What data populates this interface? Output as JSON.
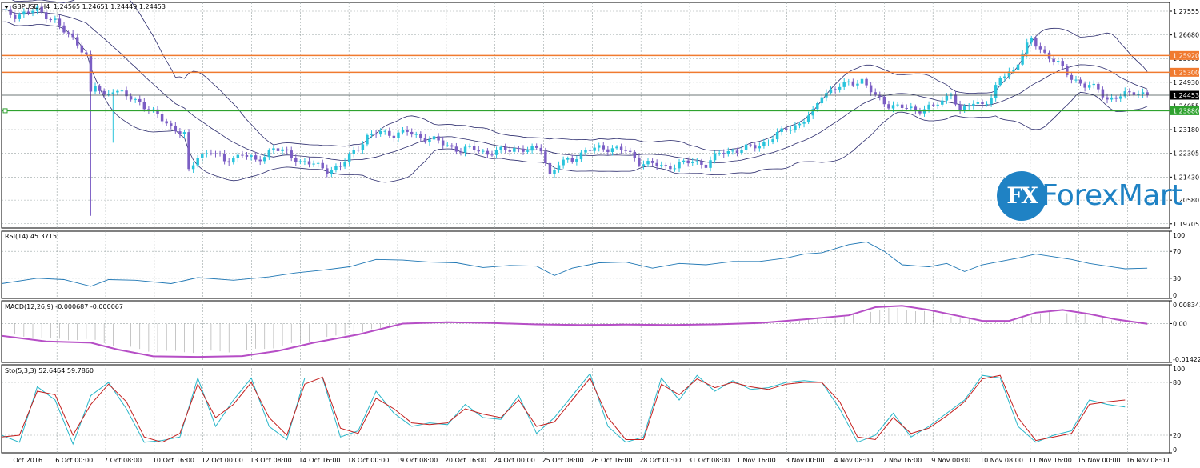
{
  "chart_data": {
    "type": "candlestick",
    "symbol_label": "GBPUSD,H4",
    "ohlc_header": "1.24565 1.24651 1.24449 1.24453",
    "colors": {
      "bull": "#29c4dc",
      "bear": "#7b5ec4",
      "bollinger": "#2d2d6e",
      "resistance": "#f07a2f",
      "support": "#2fa22f",
      "current_line": "#3c4a4a",
      "grid": "#9aa5a5",
      "rsi": "#1f77b4",
      "macd_signal": "#b64ec6",
      "macd_hist": "#a0a0a0",
      "sto_main": "#29b6c9",
      "sto_signal": "#c3201f",
      "brand": "#1f82c4"
    },
    "price_axis": {
      "ylim": [
        1.1955,
        1.2788
      ],
      "ticks": [
        "1.27555",
        "1.26680",
        "1.25805",
        "1.24930",
        "1.24055",
        "1.23180",
        "1.22305",
        "1.21430",
        "1.20580",
        "1.19705"
      ]
    },
    "levels": [
      {
        "label": "1.25920",
        "value": 1.2592,
        "kind": "resistance"
      },
      {
        "label": "1.25300",
        "value": 1.253,
        "kind": "resistance"
      },
      {
        "label": "1.24453",
        "value": 1.24453,
        "kind": "current"
      },
      {
        "label": "1.23880",
        "value": 1.2388,
        "kind": "support"
      }
    ],
    "time_labels": [
      "Oct 2016",
      "6 Oct 00:00",
      "7 Oct 08:00",
      "10 Oct 16:00",
      "12 Oct 00:00",
      "13 Oct 08:00",
      "14 Oct 16:00",
      "18 Oct 00:00",
      "19 Oct 08:00",
      "20 Oct 16:00",
      "24 Oct 00:00",
      "25 Oct 08:00",
      "26 Oct 16:00",
      "28 Oct 00:00",
      "31 Oct 08:00",
      "1 Nov 16:00",
      "3 Nov 00:00",
      "4 Nov 08:00",
      "7 Nov 16:00",
      "9 Nov 00:00",
      "10 Nov 08:00",
      "11 Nov 16:00",
      "15 Nov 00:00",
      "16 Nov 08:00"
    ],
    "close_path": [
      [
        0,
        1.2755
      ],
      [
        3,
        1.274
      ],
      [
        8,
        1.276
      ],
      [
        12,
        1.272
      ],
      [
        14,
        1.268
      ],
      [
        17,
        1.264
      ],
      [
        19,
        1.259
      ],
      [
        20,
        1.245
      ],
      [
        21,
        1.248
      ],
      [
        23,
        1.244
      ],
      [
        25,
        1.247
      ],
      [
        28,
        1.244
      ],
      [
        31,
        1.242
      ],
      [
        34,
        1.238
      ],
      [
        38,
        1.233
      ],
      [
        41,
        1.23
      ],
      [
        42,
        1.216
      ],
      [
        44,
        1.222
      ],
      [
        47,
        1.224
      ],
      [
        50,
        1.22
      ],
      [
        54,
        1.223
      ],
      [
        57,
        1.22
      ],
      [
        61,
        1.225
      ],
      [
        64,
        1.223
      ],
      [
        67,
        1.22
      ],
      [
        70,
        1.219
      ],
      [
        73,
        1.217
      ],
      [
        76,
        1.218
      ],
      [
        79,
        1.224
      ],
      [
        82,
        1.229
      ],
      [
        85,
        1.231
      ],
      [
        88,
        1.23
      ],
      [
        91,
        1.231
      ],
      [
        94,
        1.229
      ],
      [
        97,
        1.228
      ],
      [
        100,
        1.226
      ],
      [
        103,
        1.224
      ],
      [
        106,
        1.225
      ],
      [
        109,
        1.223
      ],
      [
        112,
        1.224
      ],
      [
        115,
        1.225
      ],
      [
        118,
        1.224
      ],
      [
        121,
        1.225
      ],
      [
        123,
        1.215
      ],
      [
        125,
        1.219
      ],
      [
        128,
        1.221
      ],
      [
        131,
        1.224
      ],
      [
        134,
        1.225
      ],
      [
        137,
        1.225
      ],
      [
        140,
        1.224
      ],
      [
        143,
        1.22
      ],
      [
        146,
        1.219
      ],
      [
        149,
        1.218
      ],
      [
        152,
        1.219
      ],
      [
        155,
        1.22
      ],
      [
        158,
        1.219
      ],
      [
        161,
        1.223
      ],
      [
        164,
        1.224
      ],
      [
        167,
        1.225
      ],
      [
        170,
        1.226
      ],
      [
        173,
        1.229
      ],
      [
        176,
        1.232
      ],
      [
        179,
        1.234
      ],
      [
        182,
        1.238
      ],
      [
        184,
        1.245
      ],
      [
        187,
        1.247
      ],
      [
        190,
        1.249
      ],
      [
        193,
        1.25
      ],
      [
        196,
        1.244
      ],
      [
        199,
        1.241
      ],
      [
        202,
        1.24
      ],
      [
        205,
        1.239
      ],
      [
        208,
        1.24
      ],
      [
        211,
        1.242
      ],
      [
        213,
        1.246
      ],
      [
        215,
        1.238
      ],
      [
        217,
        1.241
      ],
      [
        220,
        1.242
      ],
      [
        222,
        1.243
      ],
      [
        224,
        1.251
      ],
      [
        227,
        1.254
      ],
      [
        229,
        1.26
      ],
      [
        231,
        1.265
      ],
      [
        234,
        1.26
      ],
      [
        237,
        1.256
      ],
      [
        240,
        1.251
      ],
      [
        243,
        1.248
      ],
      [
        246,
        1.247
      ],
      [
        248,
        1.243
      ],
      [
        251,
        1.244
      ],
      [
        254,
        1.246
      ],
      [
        257,
        1.24453
      ]
    ],
    "spikes": [
      {
        "t": 20,
        "low": 1.2
      },
      {
        "t": 25,
        "low": 1.227
      }
    ],
    "rsi": {
      "label": "RSI(14) 45.3715",
      "ylim": [
        0,
        100
      ],
      "ticks": [
        "100",
        "70",
        "30",
        "0"
      ],
      "tick_values": [
        100,
        70,
        30,
        0
      ],
      "values": [
        [
          0,
          22
        ],
        [
          8,
          30
        ],
        [
          14,
          28
        ],
        [
          20,
          18
        ],
        [
          24,
          28
        ],
        [
          30,
          27
        ],
        [
          38,
          22
        ],
        [
          44,
          31
        ],
        [
          52,
          27
        ],
        [
          60,
          32
        ],
        [
          66,
          38
        ],
        [
          72,
          42
        ],
        [
          78,
          47
        ],
        [
          84,
          58
        ],
        [
          90,
          57
        ],
        [
          96,
          54
        ],
        [
          102,
          53
        ],
        [
          108,
          46
        ],
        [
          114,
          49
        ],
        [
          120,
          48
        ],
        [
          124,
          34
        ],
        [
          128,
          45
        ],
        [
          134,
          53
        ],
        [
          140,
          54
        ],
        [
          146,
          45
        ],
        [
          152,
          52
        ],
        [
          158,
          50
        ],
        [
          164,
          55
        ],
        [
          170,
          55
        ],
        [
          176,
          60
        ],
        [
          180,
          66
        ],
        [
          184,
          68
        ],
        [
          190,
          80
        ],
        [
          194,
          84
        ],
        [
          198,
          70
        ],
        [
          202,
          50
        ],
        [
          208,
          47
        ],
        [
          212,
          52
        ],
        [
          216,
          40
        ],
        [
          220,
          50
        ],
        [
          224,
          55
        ],
        [
          228,
          60
        ],
        [
          232,
          66
        ],
        [
          236,
          62
        ],
        [
          240,
          58
        ],
        [
          244,
          52
        ],
        [
          248,
          48
        ],
        [
          252,
          44
        ],
        [
          257,
          45
        ]
      ]
    },
    "macd": {
      "label": "MACD(12,26,9) -0.000687 -0.000067",
      "ylim": [
        -0.01422,
        0.00834
      ],
      "ticks": [
        "0.008343",
        "0.00",
        "-0.014226"
      ],
      "tick_values": [
        0.00834,
        0.0,
        -0.01422
      ],
      "signal": [
        [
          0,
          -0.0045
        ],
        [
          10,
          -0.0065
        ],
        [
          20,
          -0.007
        ],
        [
          26,
          -0.0095
        ],
        [
          34,
          -0.012
        ],
        [
          44,
          -0.0122
        ],
        [
          54,
          -0.0119
        ],
        [
          62,
          -0.01
        ],
        [
          70,
          -0.007
        ],
        [
          80,
          -0.004
        ],
        [
          90,
          0.0
        ],
        [
          100,
          0.0005
        ],
        [
          110,
          0.0002
        ],
        [
          120,
          -0.0003
        ],
        [
          130,
          -0.0005
        ],
        [
          140,
          -0.0004
        ],
        [
          150,
          -0.0005
        ],
        [
          160,
          -0.0003
        ],
        [
          170,
          0.0002
        ],
        [
          180,
          0.0015
        ],
        [
          190,
          0.003
        ],
        [
          196,
          0.006
        ],
        [
          202,
          0.0065
        ],
        [
          208,
          0.005
        ],
        [
          214,
          0.003
        ],
        [
          220,
          0.001
        ],
        [
          226,
          0.001
        ],
        [
          232,
          0.004
        ],
        [
          238,
          0.005
        ],
        [
          244,
          0.0035
        ],
        [
          250,
          0.0015
        ],
        [
          257,
          -0.0001
        ]
      ]
    },
    "stochastic": {
      "label": "Sto(5,3,3) 52.6464 59.7860",
      "ylim": [
        0,
        100
      ],
      "ticks": [
        "100",
        "80",
        "20",
        "0"
      ],
      "tick_values": [
        100,
        80,
        20,
        0
      ],
      "main": [
        [
          0,
          20
        ],
        [
          4,
          12
        ],
        [
          8,
          75
        ],
        [
          12,
          60
        ],
        [
          16,
          10
        ],
        [
          20,
          65
        ],
        [
          24,
          80
        ],
        [
          28,
          50
        ],
        [
          32,
          12
        ],
        [
          36,
          14
        ],
        [
          40,
          18
        ],
        [
          44,
          85
        ],
        [
          48,
          30
        ],
        [
          52,
          60
        ],
        [
          56,
          85
        ],
        [
          60,
          30
        ],
        [
          64,
          15
        ],
        [
          68,
          85
        ],
        [
          72,
          85
        ],
        [
          76,
          18
        ],
        [
          80,
          25
        ],
        [
          84,
          70
        ],
        [
          88,
          45
        ],
        [
          92,
          30
        ],
        [
          96,
          34
        ],
        [
          100,
          32
        ],
        [
          104,
          55
        ],
        [
          108,
          40
        ],
        [
          112,
          38
        ],
        [
          116,
          65
        ],
        [
          120,
          22
        ],
        [
          124,
          40
        ],
        [
          128,
          65
        ],
        [
          132,
          90
        ],
        [
          136,
          30
        ],
        [
          140,
          12
        ],
        [
          144,
          18
        ],
        [
          148,
          85
        ],
        [
          152,
          60
        ],
        [
          156,
          88
        ],
        [
          160,
          70
        ],
        [
          164,
          82
        ],
        [
          168,
          72
        ],
        [
          172,
          74
        ],
        [
          176,
          80
        ],
        [
          180,
          82
        ],
        [
          184,
          80
        ],
        [
          188,
          50
        ],
        [
          192,
          12
        ],
        [
          196,
          20
        ],
        [
          200,
          45
        ],
        [
          204,
          18
        ],
        [
          208,
          30
        ],
        [
          212,
          45
        ],
        [
          216,
          60
        ],
        [
          220,
          88
        ],
        [
          224,
          85
        ],
        [
          228,
          30
        ],
        [
          232,
          12
        ],
        [
          236,
          20
        ],
        [
          240,
          25
        ],
        [
          244,
          60
        ],
        [
          248,
          55
        ],
        [
          252,
          52
        ]
      ],
      "signal": [
        [
          0,
          18
        ],
        [
          4,
          20
        ],
        [
          8,
          70
        ],
        [
          12,
          66
        ],
        [
          16,
          20
        ],
        [
          20,
          55
        ],
        [
          24,
          78
        ],
        [
          28,
          58
        ],
        [
          32,
          18
        ],
        [
          36,
          12
        ],
        [
          40,
          22
        ],
        [
          44,
          78
        ],
        [
          48,
          40
        ],
        [
          52,
          55
        ],
        [
          56,
          80
        ],
        [
          60,
          40
        ],
        [
          64,
          20
        ],
        [
          68,
          78
        ],
        [
          72,
          86
        ],
        [
          76,
          28
        ],
        [
          80,
          22
        ],
        [
          84,
          62
        ],
        [
          88,
          50
        ],
        [
          92,
          34
        ],
        [
          96,
          32
        ],
        [
          100,
          34
        ],
        [
          104,
          50
        ],
        [
          108,
          44
        ],
        [
          112,
          40
        ],
        [
          116,
          60
        ],
        [
          120,
          30
        ],
        [
          124,
          35
        ],
        [
          128,
          60
        ],
        [
          132,
          85
        ],
        [
          136,
          40
        ],
        [
          140,
          15
        ],
        [
          144,
          15
        ],
        [
          148,
          78
        ],
        [
          152,
          66
        ],
        [
          156,
          84
        ],
        [
          160,
          74
        ],
        [
          164,
          80
        ],
        [
          168,
          75
        ],
        [
          172,
          72
        ],
        [
          176,
          78
        ],
        [
          180,
          80
        ],
        [
          184,
          80
        ],
        [
          188,
          58
        ],
        [
          192,
          18
        ],
        [
          196,
          15
        ],
        [
          200,
          40
        ],
        [
          204,
          22
        ],
        [
          208,
          28
        ],
        [
          212,
          42
        ],
        [
          216,
          58
        ],
        [
          220,
          84
        ],
        [
          224,
          88
        ],
        [
          228,
          40
        ],
        [
          232,
          14
        ],
        [
          236,
          18
        ],
        [
          240,
          22
        ],
        [
          244,
          55
        ],
        [
          248,
          58
        ],
        [
          252,
          60
        ]
      ]
    }
  },
  "watermark": {
    "badge": "FX",
    "word": "ForexMart"
  }
}
